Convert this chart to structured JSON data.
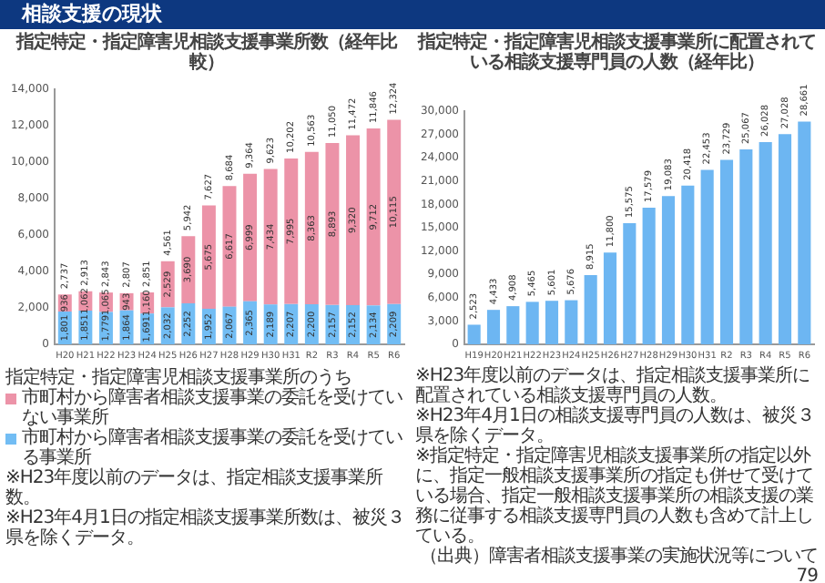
{
  "chart_data": [
    {
      "type": "bar",
      "title": "相談支援の現状",
      "subtitle": "指定特定・指定障害児相談支援事業所数（経年比較）",
      "categories": [
        "H20",
        "H21",
        "H22",
        "H23",
        "H24",
        "H25",
        "H26",
        "H27",
        "H28",
        "H29",
        "H30",
        "H31",
        "R2",
        "R3",
        "R4",
        "R5",
        "R6"
      ],
      "stacked": true,
      "ylim": [
        0,
        14000
      ],
      "yticks": [
        0,
        {
          "value": 2000,
          "label": "2,000"
        },
        {
          "value": 4000,
          "label": "4,000"
        },
        {
          "value": 6000,
          "label": "6,000"
        },
        {
          "value": 8000,
          "label": "8,000"
        },
        {
          "value": 10000,
          "label": "10,000"
        },
        {
          "value": 12000,
          "label": "12,000"
        },
        {
          "value": 14000,
          "label": "14,000"
        }
      ],
      "legend": "bottom",
      "legend_title": "指定特定・指定障害児相談支援事業所のうち",
      "series": [
        {
          "name": "市町村から障害者相談支援事業の委託を受けている事業所",
          "color": "#72bdf4",
          "values": [
            1801,
            1851,
            1779,
            1864,
            1691,
            2032,
            2252,
            1952,
            2067,
            2365,
            2189,
            2207,
            2200,
            2157,
            2152,
            2134,
            2209
          ],
          "value_labels": [
            "1,801",
            "1,851",
            "1,779",
            "1,864",
            "1,691",
            "2,032",
            "2,252",
            "1,952",
            "2,067",
            "2,365",
            "2,189",
            "2,207",
            "2,200",
            "2,157",
            "2,152",
            "2,134",
            "2,209"
          ]
        },
        {
          "name": "市町村から障害者相談支援事業の委託を受けていない事業所",
          "color": "#ec93a8",
          "values": [
            936,
            1062,
            1065,
            943,
            1160,
            2529,
            3690,
            5675,
            6617,
            6999,
            7434,
            7995,
            8363,
            8893,
            9320,
            9712,
            10115
          ],
          "value_labels": [
            "936",
            "1,062",
            "1,065",
            "943",
            "1,160",
            "2,529",
            "3,690",
            "5,675",
            "6,617",
            "6,999",
            "7,434",
            "7,995",
            "8,363",
            "8,893",
            "9,320",
            "9,712",
            "10,115"
          ]
        }
      ],
      "totals": [
        "2,737",
        "2,913",
        "2,843",
        "2,807",
        "2,851",
        "4,561",
        "5,942",
        "7,627",
        "8,684",
        "9,364",
        "9,623",
        "10,202",
        "10,563",
        "11,050",
        "11,472",
        "11,846",
        "12,324"
      ],
      "annotations": [
        "※H23年度以前のデータは、指定相談支援事業所数。",
        "※H23年4月1日の指定相談支援事業所数は、被災３県を除くデータ。"
      ]
    },
    {
      "type": "bar",
      "title": "指定特定・指定障害児相談支援事業所に配置されている相談支援専門員の人数（経年比）",
      "categories": [
        "H19",
        "H20",
        "H21",
        "H22",
        "H23",
        "H24",
        "H25",
        "H26",
        "H27",
        "H28",
        "H29",
        "H30",
        "H31",
        "R2",
        "R3",
        "R4",
        "R5",
        "R6"
      ],
      "values": [
        2523,
        4433,
        4908,
        5465,
        5601,
        5676,
        8915,
        11800,
        15575,
        17579,
        19083,
        20418,
        22453,
        23729,
        25067,
        26028,
        27028,
        28661
      ],
      "color": "#6db6f2",
      "value_labels": [
        "2,523",
        "4,433",
        "4,908",
        "5,465",
        "5,601",
        "5,676",
        "8,915",
        "11,800",
        "15,575",
        "17,579",
        "19,083",
        "20,418",
        "22,453",
        "23,729",
        "25,067",
        "26,028",
        "27,028",
        "28,661"
      ],
      "ylim": [
        0,
        30000
      ],
      "yticks": [
        0,
        {
          "value": 3000,
          "label": "3,000"
        },
        {
          "value": 6000,
          "label": "6,000"
        },
        {
          "value": 9000,
          "label": "9,000"
        },
        {
          "value": 12000,
          "label": "12,000"
        },
        {
          "value": 15000,
          "label": "15,000"
        },
        {
          "value": 18000,
          "label": "18,000"
        },
        {
          "value": 21000,
          "label": "21,000"
        },
        {
          "value": 24000,
          "label": "24,000"
        },
        {
          "value": 27000,
          "label": "27,000"
        },
        {
          "value": 30000,
          "label": "30,000"
        }
      ],
      "annotations": [
        "※H23年度以前のデータは、指定相談支援事業所に配置されている相談支援専門員の人数。",
        "※H23年4月1日の相談支援専門員の人数は、被災３県を除くデータ。",
        "※指定特定・指定障害児相談支援事業所の指定以外に、指定一般相談支援事業所の指定も併せて受けている場合、指定一般相談支援事業所の相談支援の業務に従事する相談支援専門員の人数も含めて計上している。",
        "（出典）障害者相談支援事業の実施状況等について",
        "79"
      ]
    }
  ]
}
